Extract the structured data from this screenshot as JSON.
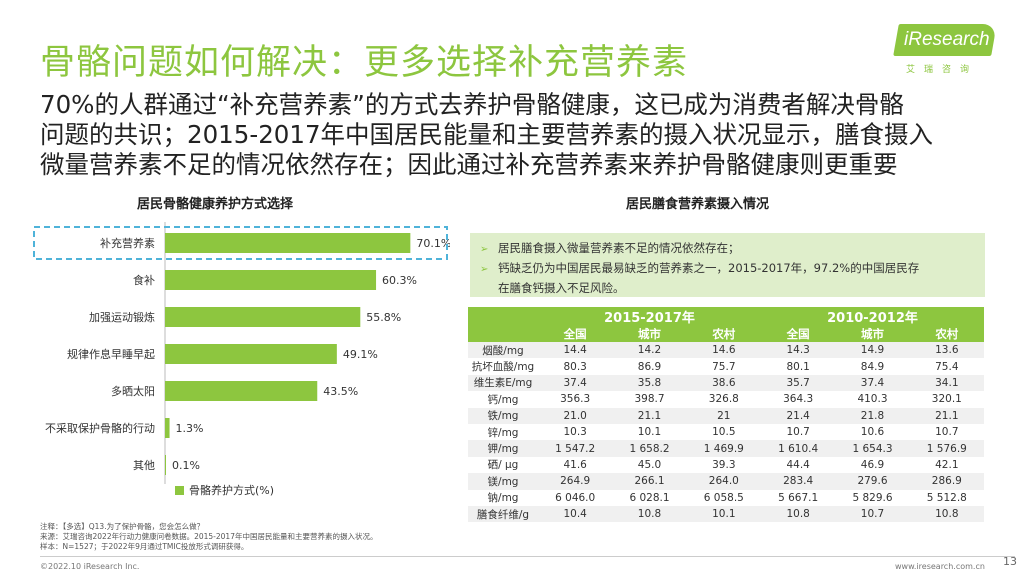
{
  "title": "骨骼问题如何解决：更多选择补充营养素",
  "logo": {
    "text": "iResearch",
    "cn": "艾瑞咨询"
  },
  "intro_lines": [
    "70%的人群通过“补充营养素”的方式去养护骨骼健康，这已成为消费者解决骨骼",
    "问题的共识；2015-2017年中国居民能量和主要营养素的摄入状况显示，膳食摄入",
    "微量营养素不足的情况依然存在；因此通过补充营养素来养护骨骼健康则更重要"
  ],
  "left_title": "居民骨骼健康养护方式选择",
  "right_title": "居民膳食营养素摄入情况",
  "colors": {
    "accent": "#8dc63f",
    "highlight_dash": "#4fb3d9"
  },
  "chart_data": {
    "type": "bar",
    "orientation": "horizontal",
    "categories": [
      "补充营养素",
      "食补",
      "加强运动锻炼",
      "规律作息早睡早起",
      "多晒太阳",
      "不采取保护骨骼的行动",
      "其他"
    ],
    "series": [
      {
        "name": "骨骼养护方式(%)",
        "values": [
          70.1,
          60.3,
          55.8,
          49.1,
          43.5,
          1.3,
          0.1
        ]
      }
    ],
    "value_labels": [
      "70.1%",
      "60.3%",
      "55.8%",
      "49.1%",
      "43.5%",
      "1.3%",
      "0.1%"
    ],
    "xlim": [
      0,
      80
    ],
    "highlighted_category": "补充营养素",
    "legend": "bottom",
    "grid": false
  },
  "notes": [
    {
      "lines": [
        "居民膳食摄入微量营养素不足的情况依然存在；"
      ]
    },
    {
      "lines": [
        "钙缺乏仍为中国居民最易缺乏的营养素之一，2015-2017年，97.2%的中国居民存",
        "在膳食钙摄入不足风险。"
      ]
    }
  ],
  "table": {
    "groups": [
      "2015-2017年",
      "2010-2012年"
    ],
    "subheaders": [
      "全国",
      "城市",
      "农村",
      "全国",
      "城市",
      "农村"
    ],
    "rows": [
      {
        "label": "烟酸/mg",
        "values": [
          "14.4",
          "14.2",
          "14.6",
          "14.3",
          "14.9",
          "13.6"
        ]
      },
      {
        "label": "抗坏血酸/mg",
        "values": [
          "80.3",
          "86.9",
          "75.7",
          "80.1",
          "84.9",
          "75.4"
        ]
      },
      {
        "label": "维生素E/mg",
        "values": [
          "37.4",
          "35.8",
          "38.6",
          "35.7",
          "37.4",
          "34.1"
        ]
      },
      {
        "label": "钙/mg",
        "values": [
          "356.3",
          "398.7",
          "326.8",
          "364.3",
          "410.3",
          "320.1"
        ]
      },
      {
        "label": "铁/mg",
        "values": [
          "21.0",
          "21.1",
          "21",
          "21.4",
          "21.8",
          "21.1"
        ]
      },
      {
        "label": "锌/mg",
        "values": [
          "10.3",
          "10.1",
          "10.5",
          "10.7",
          "10.6",
          "10.7"
        ]
      },
      {
        "label": "钾/mg",
        "values": [
          "1 547.2",
          "1 658.2",
          "1 469.9",
          "1 610.4",
          "1 654.3",
          "1 576.9"
        ]
      },
      {
        "label": "硒/ μg",
        "values": [
          "41.6",
          "45.0",
          "39.3",
          "44.4",
          "46.9",
          "42.1"
        ]
      },
      {
        "label": "镁/mg",
        "values": [
          "264.9",
          "266.1",
          "264.0",
          "283.4",
          "279.6",
          "286.9"
        ]
      },
      {
        "label": "钠/mg",
        "values": [
          "6 046.0",
          "6 028.1",
          "6 058.5",
          "5 667.1",
          "5 829.6",
          "5 512.8"
        ]
      },
      {
        "label": "膳食纤维/g",
        "values": [
          "10.4",
          "10.8",
          "10.1",
          "10.8",
          "10.7",
          "10.8"
        ]
      }
    ]
  },
  "footnotes": [
    "注释：【多选】Q13.为了保护骨骼，您会怎么做？",
    "来源：艾瑞咨询2022年行动力健康问卷数据。2015-2017年中国居民能量和主要营养素的摄入状况。",
    "样本：N=1527；于2022年9月通过TMIC投放形式调研获得。"
  ],
  "copyright": "©2022.10 iResearch Inc.",
  "site": "www.iresearch.com.cn",
  "page_number": "13"
}
